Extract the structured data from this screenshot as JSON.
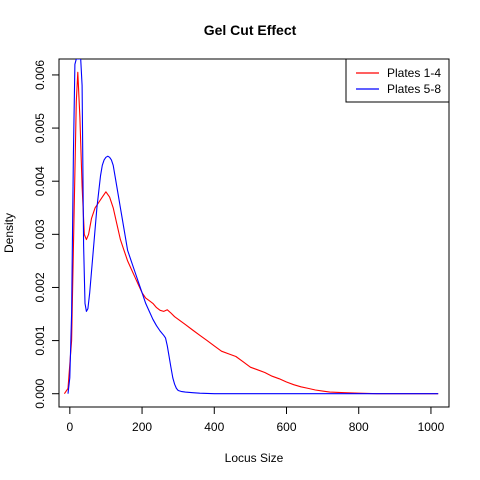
{
  "chart_data": {
    "type": "line",
    "title": "Gel Cut Effect",
    "xlabel": "Locus Size",
    "ylabel": "Density",
    "xlim": [
      -30,
      1050
    ],
    "ylim": [
      -0.00025,
      0.0063
    ],
    "xticks": [
      0,
      200,
      400,
      600,
      800,
      1000
    ],
    "xtick_labels": [
      "0",
      "200",
      "400",
      "600",
      "800",
      "1000"
    ],
    "yticks": [
      0.0,
      0.001,
      0.002,
      0.003,
      0.004,
      0.005,
      0.006
    ],
    "ytick_labels": [
      "0.000",
      "0.001",
      "0.002",
      "0.003",
      "0.004",
      "0.005",
      "0.006"
    ],
    "grid": false,
    "legend": "top-right",
    "series": [
      {
        "name": "Plates 1-4",
        "color": "#ff0000",
        "x": [
          -15,
          -5,
          5,
          12,
          18,
          22,
          28,
          34,
          40,
          46,
          52,
          60,
          70,
          80,
          90,
          100,
          110,
          120,
          130,
          140,
          150,
          160,
          170,
          180,
          190,
          200,
          210,
          220,
          230,
          240,
          250,
          260,
          270,
          280,
          290,
          300,
          320,
          340,
          360,
          380,
          400,
          420,
          440,
          460,
          480,
          500,
          520,
          540,
          560,
          580,
          600,
          620,
          640,
          660,
          680,
          700,
          720,
          760,
          800,
          850,
          900,
          950,
          1000,
          1020
        ],
        "y": [
          0.0,
          0.0001,
          0.001,
          0.0035,
          0.0055,
          0.00605,
          0.0052,
          0.0039,
          0.003,
          0.0029,
          0.003,
          0.0033,
          0.0035,
          0.0036,
          0.0037,
          0.0038,
          0.0037,
          0.0035,
          0.0032,
          0.0029,
          0.0027,
          0.0025,
          0.00235,
          0.0022,
          0.00205,
          0.0019,
          0.0018,
          0.00175,
          0.0017,
          0.00162,
          0.00157,
          0.00155,
          0.00158,
          0.00152,
          0.00145,
          0.0014,
          0.0013,
          0.0012,
          0.0011,
          0.001,
          0.0009,
          0.0008,
          0.00075,
          0.0007,
          0.0006,
          0.0005,
          0.00045,
          0.0004,
          0.00033,
          0.00028,
          0.00022,
          0.00017,
          0.00013,
          0.0001,
          7e-05,
          5e-05,
          3e-05,
          2e-05,
          1e-05,
          0.0,
          0.0,
          0.0,
          0.0,
          0.0
        ]
      },
      {
        "name": "Plates 5-8",
        "color": "#0000ff",
        "x": [
          -5,
          0,
          5,
          10,
          14,
          18,
          22,
          26,
          30,
          34,
          38,
          42,
          46,
          50,
          55,
          60,
          65,
          70,
          75,
          80,
          85,
          90,
          95,
          100,
          105,
          110,
          115,
          120,
          125,
          130,
          135,
          140,
          145,
          150,
          155,
          160,
          170,
          180,
          190,
          200,
          210,
          220,
          230,
          240,
          250,
          260,
          265,
          270,
          275,
          280,
          285,
          290,
          295,
          300,
          310,
          320,
          340,
          360,
          400,
          450,
          500,
          600,
          700,
          800,
          900,
          1000,
          1020
        ],
        "y": [
          0.0,
          0.0003,
          0.0015,
          0.0045,
          0.0062,
          0.0063,
          0.0063,
          0.0063,
          0.0063,
          0.0058,
          0.0028,
          0.0017,
          0.00155,
          0.0016,
          0.0019,
          0.0023,
          0.0027,
          0.0031,
          0.0035,
          0.0038,
          0.0041,
          0.0043,
          0.0044,
          0.00445,
          0.00447,
          0.00445,
          0.0044,
          0.0043,
          0.0041,
          0.0039,
          0.0037,
          0.0035,
          0.0033,
          0.0031,
          0.0029,
          0.0027,
          0.0025,
          0.0023,
          0.0021,
          0.0019,
          0.0017,
          0.00155,
          0.0014,
          0.00128,
          0.00118,
          0.0011,
          0.00105,
          0.0009,
          0.0007,
          0.0005,
          0.0003,
          0.00018,
          0.0001,
          6e-05,
          4e-05,
          3e-05,
          2e-05,
          1e-05,
          0.0,
          0.0,
          0.0,
          0.0,
          0.0,
          0.0,
          0.0,
          0.0,
          0.0
        ]
      }
    ]
  }
}
